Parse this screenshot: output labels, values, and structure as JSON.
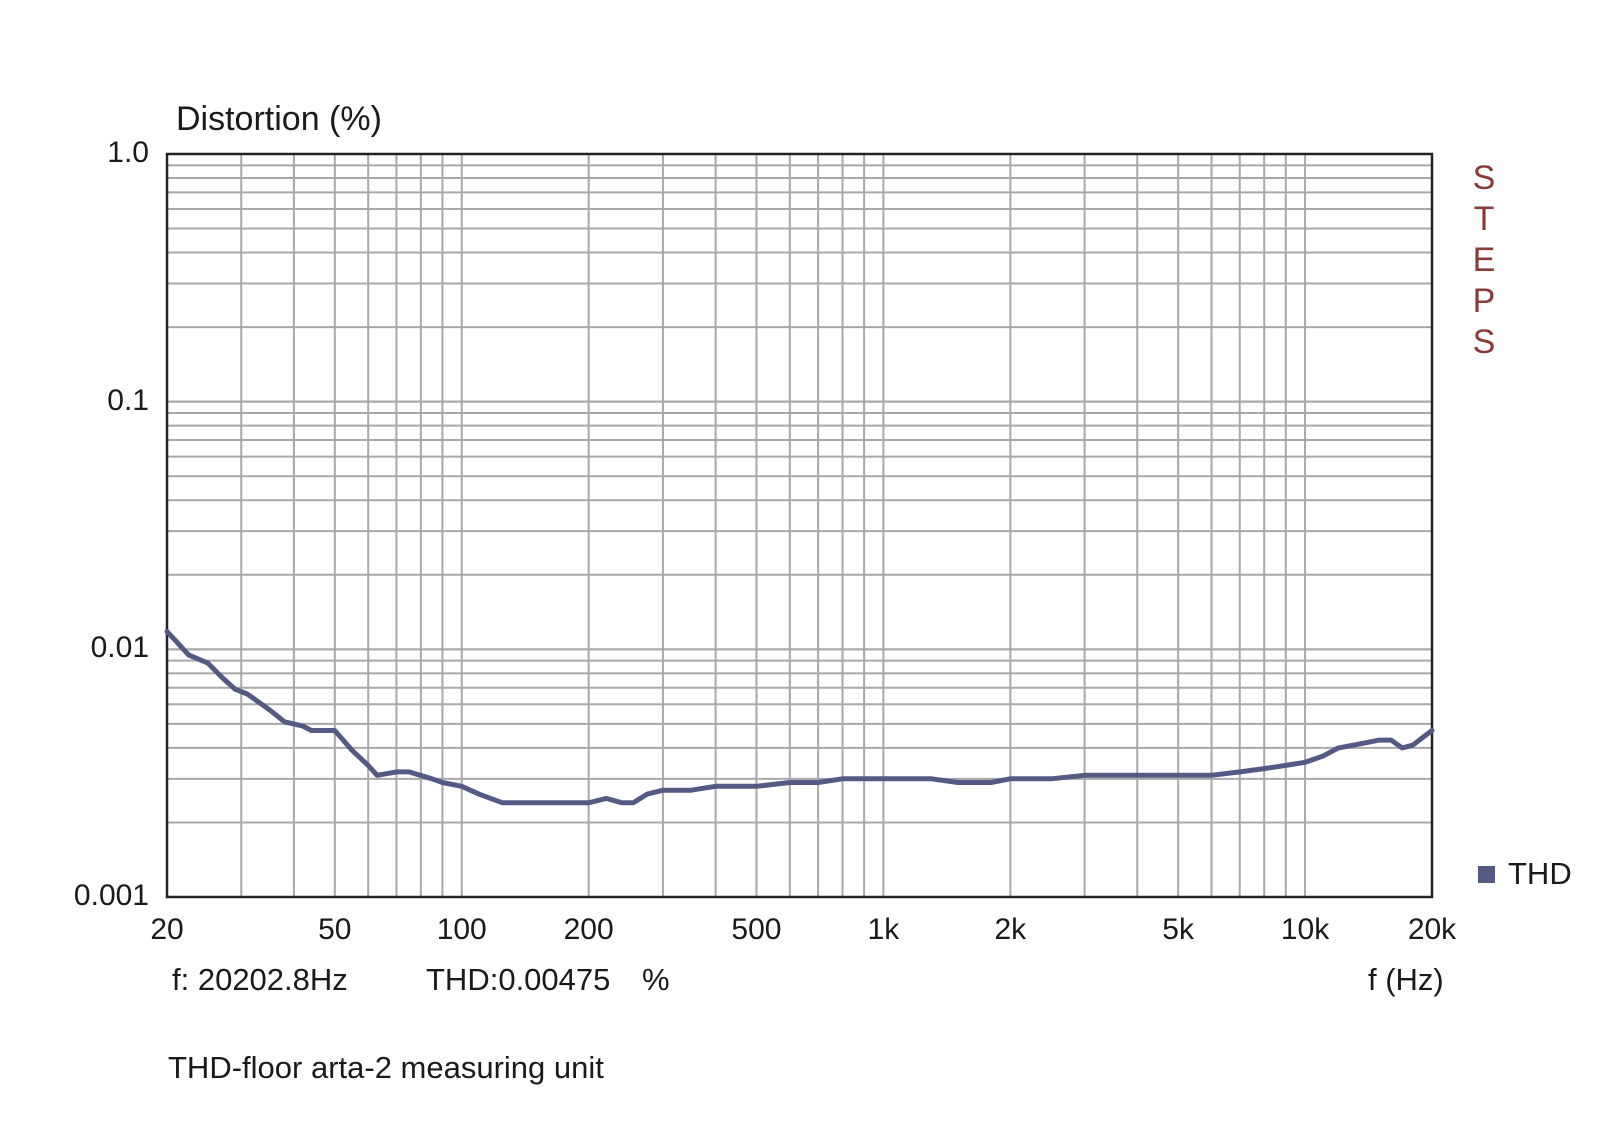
{
  "chart_data": {
    "type": "line",
    "ylabel": "Distortion (%)",
    "xlabel": "f (Hz)",
    "x_scale": "log",
    "y_scale": "log",
    "xlim": [
      20,
      20000
    ],
    "ylim": [
      0.001,
      1.0
    ],
    "grid": true,
    "y_ticks": [
      {
        "value": 1.0,
        "label": "1.0"
      },
      {
        "value": 0.1,
        "label": "0.1"
      },
      {
        "value": 0.01,
        "label": "0.01"
      },
      {
        "value": 0.001,
        "label": "0.001"
      }
    ],
    "x_ticks": [
      {
        "value": 20,
        "label": "20"
      },
      {
        "value": 50,
        "label": "50"
      },
      {
        "value": 100,
        "label": "100"
      },
      {
        "value": 200,
        "label": "200"
      },
      {
        "value": 500,
        "label": "500"
      },
      {
        "value": 1000,
        "label": "1k"
      },
      {
        "value": 2000,
        "label": "2k"
      },
      {
        "value": 5000,
        "label": "5k"
      },
      {
        "value": 10000,
        "label": "10k"
      },
      {
        "value": 20000,
        "label": "20k"
      }
    ],
    "legend_position": "bottom-right",
    "series": [
      {
        "name": "THD",
        "color": "#555a85",
        "points": [
          [
            20,
            0.0118
          ],
          [
            21,
            0.0108
          ],
          [
            22.5,
            0.0095
          ],
          [
            25,
            0.0088
          ],
          [
            27,
            0.0077
          ],
          [
            29,
            0.0069
          ],
          [
            31,
            0.0066
          ],
          [
            35,
            0.0057
          ],
          [
            38,
            0.0051
          ],
          [
            42,
            0.0049
          ],
          [
            44,
            0.0047
          ],
          [
            50,
            0.0047
          ],
          [
            55,
            0.0039
          ],
          [
            60,
            0.0034
          ],
          [
            63,
            0.0031
          ],
          [
            70,
            0.0032
          ],
          [
            75,
            0.0032
          ],
          [
            85,
            0.003
          ],
          [
            90,
            0.0029
          ],
          [
            100,
            0.0028
          ],
          [
            110,
            0.0026
          ],
          [
            125,
            0.0024
          ],
          [
            140,
            0.0024
          ],
          [
            160,
            0.0024
          ],
          [
            180,
            0.0024
          ],
          [
            200,
            0.0024
          ],
          [
            220,
            0.0025
          ],
          [
            240,
            0.0024
          ],
          [
            255,
            0.0024
          ],
          [
            275,
            0.0026
          ],
          [
            300,
            0.0027
          ],
          [
            350,
            0.0027
          ],
          [
            400,
            0.0028
          ],
          [
            450,
            0.0028
          ],
          [
            500,
            0.0028
          ],
          [
            600,
            0.0029
          ],
          [
            700,
            0.0029
          ],
          [
            800,
            0.003
          ],
          [
            1000,
            0.003
          ],
          [
            1300,
            0.003
          ],
          [
            1500,
            0.0029
          ],
          [
            1800,
            0.0029
          ],
          [
            2000,
            0.003
          ],
          [
            2500,
            0.003
          ],
          [
            3000,
            0.0031
          ],
          [
            4000,
            0.0031
          ],
          [
            5000,
            0.0031
          ],
          [
            6000,
            0.0031
          ],
          [
            7000,
            0.0032
          ],
          [
            8000,
            0.0033
          ],
          [
            9000,
            0.0034
          ],
          [
            10000,
            0.0035
          ],
          [
            11000,
            0.0037
          ],
          [
            12000,
            0.004
          ],
          [
            13000,
            0.0041
          ],
          [
            14000,
            0.0042
          ],
          [
            15000,
            0.0043
          ],
          [
            16000,
            0.0043
          ],
          [
            17000,
            0.004
          ],
          [
            18000,
            0.0041
          ],
          [
            19000,
            0.0044
          ],
          [
            20000,
            0.0047
          ]
        ]
      }
    ]
  },
  "readout": {
    "frequency": "f: 20202.8Hz",
    "thd": "THD:0.00475",
    "unit": "%"
  },
  "caption": "THD-floor arta-2 measuring unit",
  "brand_letters": [
    "S",
    "T",
    "E",
    "P",
    "S"
  ],
  "colors": {
    "grid": "#a8a8a8",
    "frame": "#222222",
    "brand": "#8b3a3a"
  }
}
